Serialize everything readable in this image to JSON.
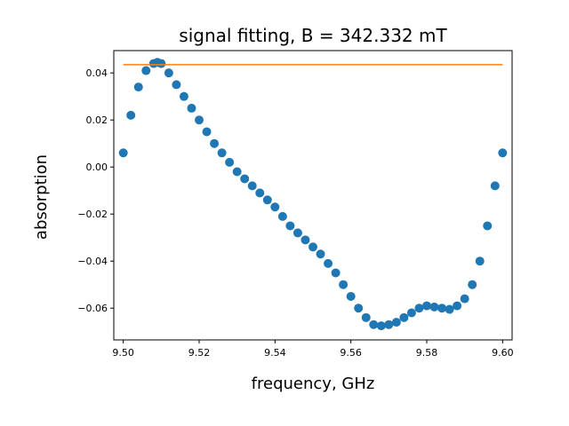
{
  "chart_data": {
    "type": "scatter",
    "title": "signal fitting, B = 342.332 mT",
    "xlabel": "frequency, GHz",
    "ylabel": "absorption",
    "xlim": [
      9.4975,
      9.6025
    ],
    "ylim": [
      -0.0735,
      0.0495
    ],
    "x_ticks": [
      9.5,
      9.52,
      9.54,
      9.56,
      9.58,
      9.6
    ],
    "x_tick_labels": [
      "9.50",
      "9.52",
      "9.54",
      "9.56",
      "9.58",
      "9.60"
    ],
    "y_ticks": [
      0.04,
      0.02,
      0.0,
      -0.02,
      -0.04,
      -0.06
    ],
    "y_tick_labels": [
      "0.04",
      "0.02",
      "0.00",
      "−0.02",
      "−0.04",
      "−0.06"
    ],
    "grid": false,
    "series": [
      {
        "kind": "scatter",
        "color": "#1f77b4",
        "x": [
          9.5,
          9.502,
          9.504,
          9.506,
          9.508,
          9.509,
          9.51,
          9.512,
          9.514,
          9.516,
          9.518,
          9.52,
          9.522,
          9.524,
          9.526,
          9.528,
          9.53,
          9.532,
          9.534,
          9.536,
          9.538,
          9.54,
          9.542,
          9.544,
          9.546,
          9.548,
          9.55,
          9.552,
          9.554,
          9.556,
          9.558,
          9.56,
          9.562,
          9.564,
          9.566,
          9.568,
          9.57,
          9.572,
          9.574,
          9.576,
          9.578,
          9.58,
          9.582,
          9.584,
          9.586,
          9.588,
          9.59,
          9.592,
          9.594,
          9.596,
          9.598,
          9.6
        ],
        "y": [
          0.006,
          0.022,
          0.034,
          0.041,
          0.044,
          0.0445,
          0.044,
          0.04,
          0.035,
          0.03,
          0.025,
          0.02,
          0.015,
          0.01,
          0.006,
          0.002,
          -0.002,
          -0.005,
          -0.008,
          -0.011,
          -0.014,
          -0.017,
          -0.021,
          -0.025,
          -0.028,
          -0.031,
          -0.034,
          -0.037,
          -0.041,
          -0.045,
          -0.05,
          -0.055,
          -0.06,
          -0.064,
          -0.067,
          -0.0675,
          -0.067,
          -0.066,
          -0.064,
          -0.062,
          -0.06,
          -0.059,
          -0.0595,
          -0.06,
          -0.0605,
          -0.059,
          -0.056,
          -0.05,
          -0.04,
          -0.025,
          -0.008,
          0.006
        ]
      },
      {
        "kind": "line",
        "color": "#ff7f0e",
        "x": [
          9.5,
          9.6
        ],
        "y": [
          0.0435,
          0.0435
        ]
      }
    ]
  }
}
